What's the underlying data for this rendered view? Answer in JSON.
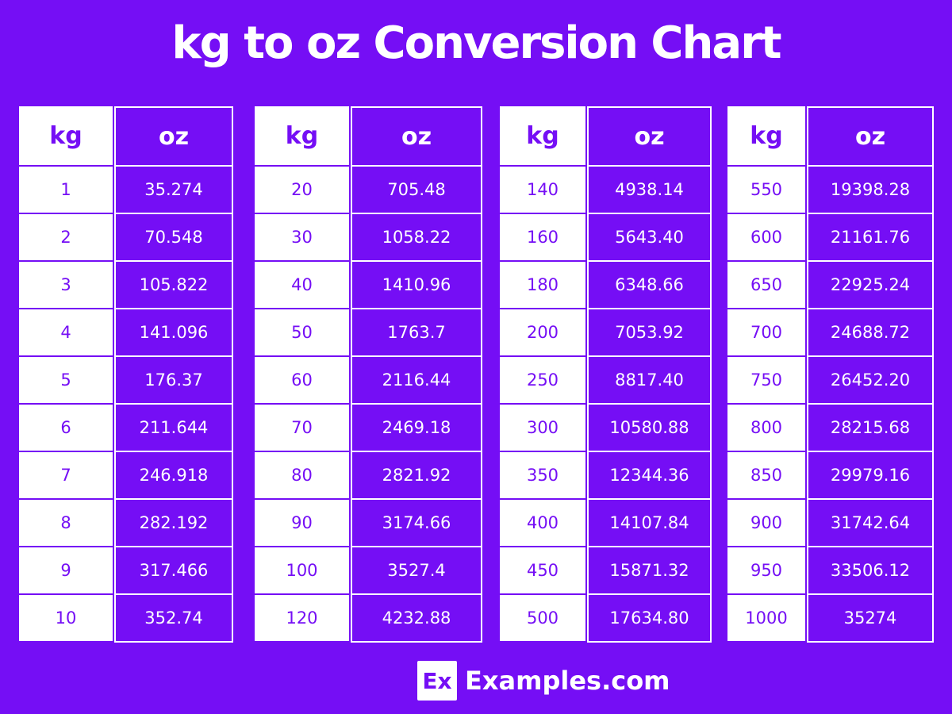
{
  "title": "kg to oz Conversion Chart",
  "colors": {
    "background": "#750ef5",
    "kg_cell": "#ffffff",
    "oz_cell": "#750ef5"
  },
  "chart_data": {
    "type": "table",
    "title": "kg to oz Conversion Chart",
    "tables": [
      {
        "headers": [
          "kg",
          "oz"
        ],
        "rows": [
          [
            "1",
            "35.274"
          ],
          [
            "2",
            "70.548"
          ],
          [
            "3",
            "105.822"
          ],
          [
            "4",
            "141.096"
          ],
          [
            "5",
            "176.37"
          ],
          [
            "6",
            "211.644"
          ],
          [
            "7",
            "246.918"
          ],
          [
            "8",
            "282.192"
          ],
          [
            "9",
            "317.466"
          ],
          [
            "10",
            "352.74"
          ]
        ]
      },
      {
        "headers": [
          "kg",
          "oz"
        ],
        "rows": [
          [
            "20",
            "705.48"
          ],
          [
            "30",
            "1058.22"
          ],
          [
            "40",
            "1410.96"
          ],
          [
            "50",
            "1763.7"
          ],
          [
            "60",
            "2116.44"
          ],
          [
            "70",
            "2469.18"
          ],
          [
            "80",
            "2821.92"
          ],
          [
            "90",
            "3174.66"
          ],
          [
            "100",
            "3527.4"
          ],
          [
            "120",
            "4232.88"
          ]
        ]
      },
      {
        "headers": [
          "kg",
          "oz"
        ],
        "rows": [
          [
            "140",
            "4938.14"
          ],
          [
            "160",
            "5643.40"
          ],
          [
            "180",
            "6348.66"
          ],
          [
            "200",
            "7053.92"
          ],
          [
            "250",
            "8817.40"
          ],
          [
            "300",
            "10580.88"
          ],
          [
            "350",
            "12344.36"
          ],
          [
            "400",
            "14107.84"
          ],
          [
            "450",
            "15871.32"
          ],
          [
            "500",
            "17634.80"
          ]
        ]
      },
      {
        "headers": [
          "kg",
          "oz"
        ],
        "rows": [
          [
            "550",
            "19398.28"
          ],
          [
            "600",
            "21161.76"
          ],
          [
            "650",
            "22925.24"
          ],
          [
            "700",
            "24688.72"
          ],
          [
            "750",
            "26452.20"
          ],
          [
            "800",
            "28215.68"
          ],
          [
            "850",
            "29979.16"
          ],
          [
            "900",
            "31742.64"
          ],
          [
            "950",
            "33506.12"
          ],
          [
            "1000",
            "35274"
          ]
        ]
      }
    ]
  },
  "footer": {
    "logo_text": "Ex",
    "brand": "Examples.com"
  }
}
